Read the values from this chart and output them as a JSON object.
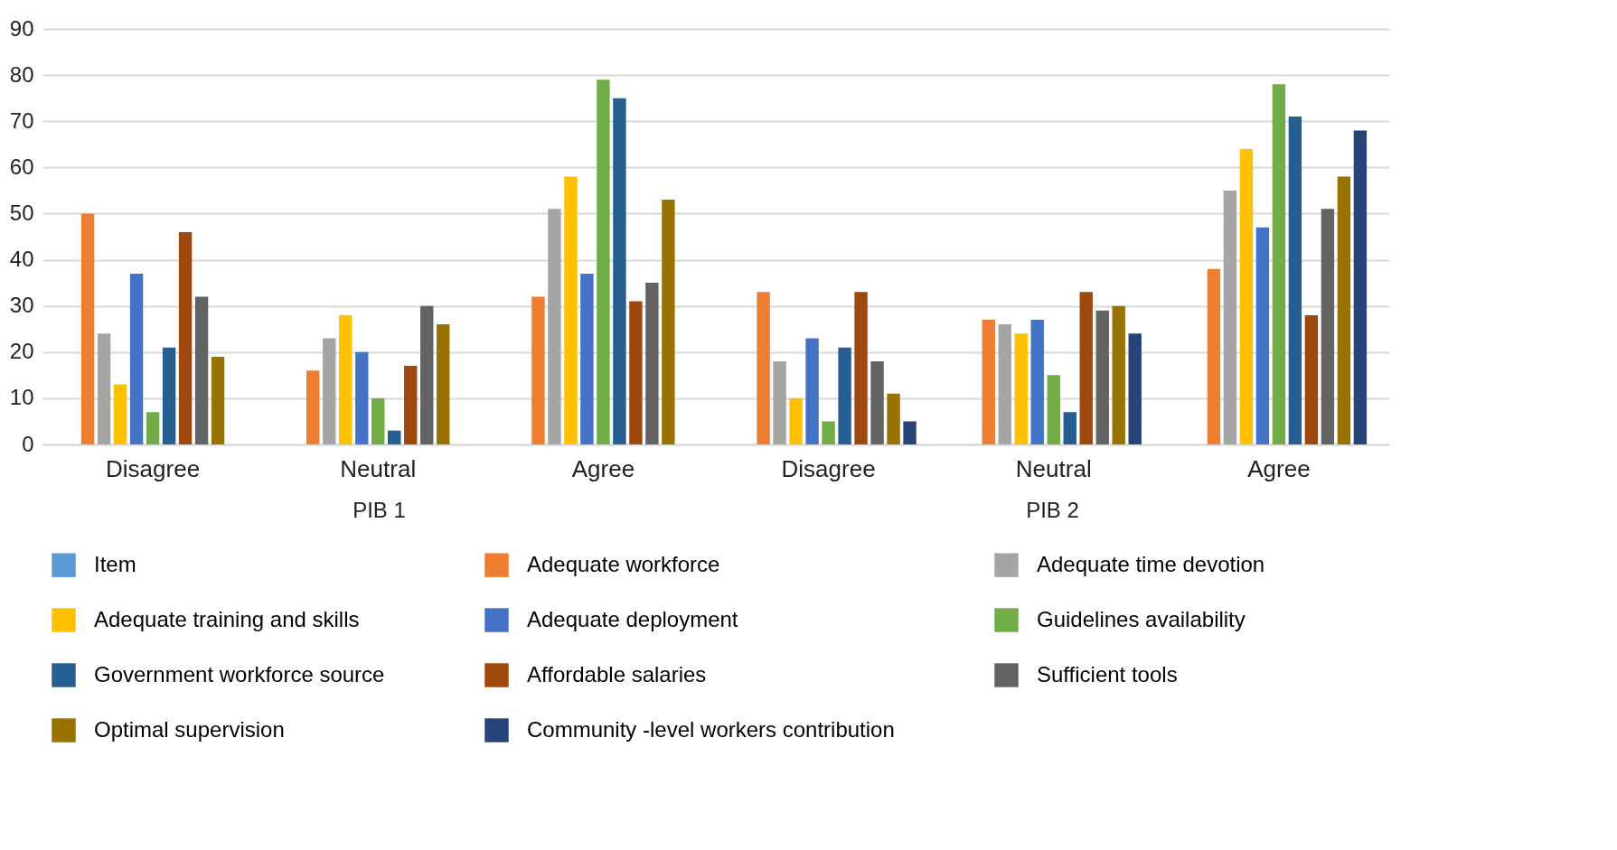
{
  "chart_data": {
    "type": "bar",
    "categories": [
      "Disagree",
      "Neutral",
      "Agree",
      "Disagree",
      "Neutral",
      "Agree"
    ],
    "annotations": [
      "PIB 1",
      "PIB 2"
    ],
    "ylim": [
      0,
      90
    ],
    "yticks": [
      0,
      10,
      20,
      30,
      40,
      50,
      60,
      70,
      80,
      90
    ],
    "grid": "y",
    "legend": "bottom",
    "series": [
      {
        "name": "Item",
        "color": "#5b9bd5",
        "values": [
          null,
          null,
          null,
          null,
          null,
          null
        ]
      },
      {
        "name": "Adequate workforce",
        "color": "#ed7d31",
        "values": [
          50,
          16,
          32,
          33,
          27,
          38
        ]
      },
      {
        "name": "Adequate time devotion",
        "color": "#a5a5a5",
        "values": [
          24,
          23,
          51,
          18,
          26,
          55
        ]
      },
      {
        "name": "Adequate training and skills",
        "color": "#ffc000",
        "values": [
          13,
          28,
          58,
          10,
          24,
          64
        ]
      },
      {
        "name": "Adequate deployment",
        "color": "#4472c4",
        "values": [
          37,
          20,
          37,
          23,
          27,
          47
        ]
      },
      {
        "name": "Guidelines availability",
        "color": "#70ad47",
        "values": [
          7,
          10,
          79,
          5,
          15,
          78
        ]
      },
      {
        "name": "Government workforce source",
        "color": "#255e91",
        "values": [
          21,
          3,
          75,
          21,
          7,
          71
        ]
      },
      {
        "name": "Affordable salaries",
        "color": "#9e480e",
        "values": [
          46,
          17,
          31,
          33,
          33,
          28
        ]
      },
      {
        "name": "Sufficient tools",
        "color": "#636363",
        "values": [
          32,
          30,
          35,
          18,
          29,
          51
        ]
      },
      {
        "name": "Optimal supervision",
        "color": "#997300",
        "values": [
          19,
          26,
          53,
          11,
          30,
          58
        ]
      },
      {
        "name": "Community -level workers contribution",
        "color": "#264478",
        "values": [
          null,
          null,
          null,
          5,
          24,
          68
        ]
      }
    ]
  }
}
